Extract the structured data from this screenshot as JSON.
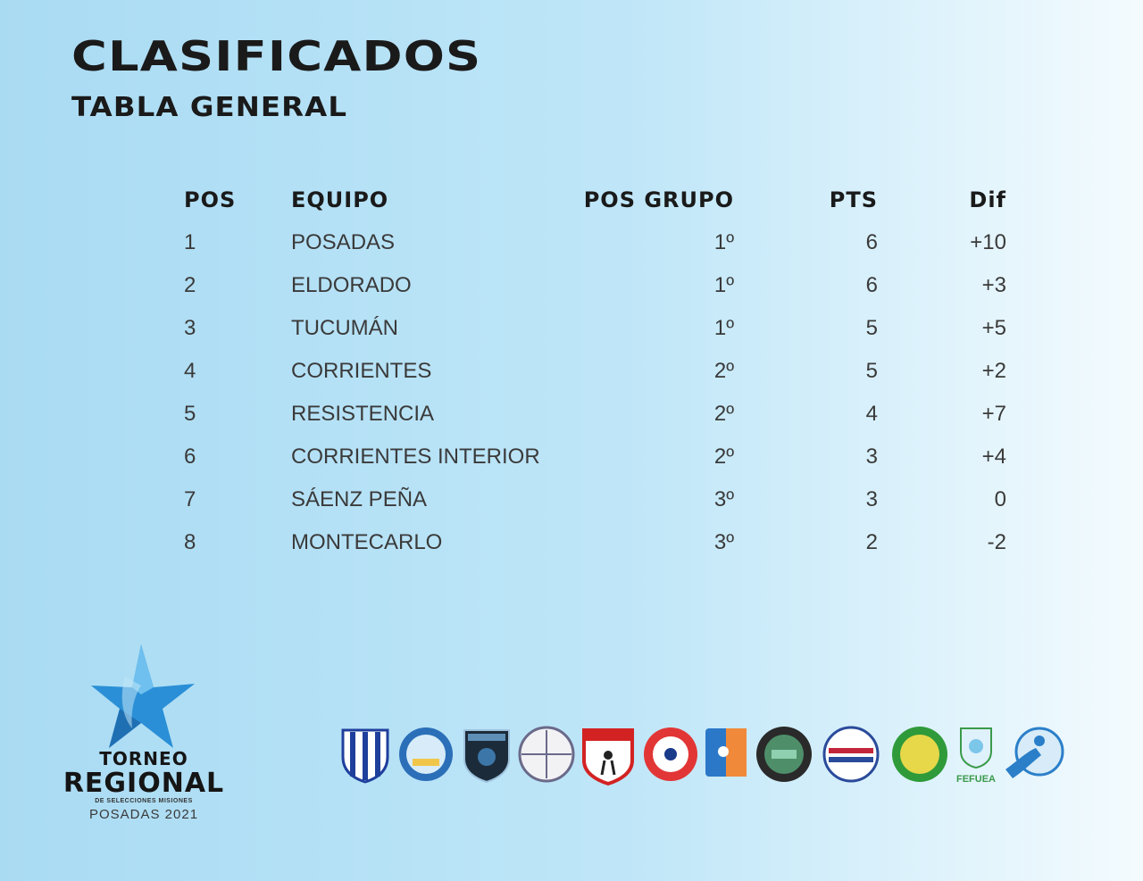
{
  "header": {
    "title": "CLASIFICADOS",
    "subtitle": "TABLA GENERAL"
  },
  "table": {
    "columns": [
      "POS",
      "EQUIPO",
      "POS GRUPO",
      "PTS",
      "Dif"
    ],
    "rows": [
      {
        "pos": "1",
        "team": "POSADAS",
        "group_pos": "1º",
        "pts": "6",
        "dif": "+10"
      },
      {
        "pos": "2",
        "team": "ELDORADO",
        "group_pos": "1º",
        "pts": "6",
        "dif": "+3"
      },
      {
        "pos": "3",
        "team": "TUCUMÁN",
        "group_pos": "1º",
        "pts": "5",
        "dif": "+5"
      },
      {
        "pos": "4",
        "team": "CORRIENTES",
        "group_pos": "2º",
        "pts": "5",
        "dif": "+2"
      },
      {
        "pos": "5",
        "team": "RESISTENCIA",
        "group_pos": "2º",
        "pts": "4",
        "dif": "+7"
      },
      {
        "pos": "6",
        "team": "CORRIENTES INTERIOR",
        "group_pos": "2º",
        "pts": "3",
        "dif": "+4"
      },
      {
        "pos": "7",
        "team": "SÁENZ PEÑA",
        "group_pos": "3º",
        "pts": "3",
        "dif": "0"
      },
      {
        "pos": "8",
        "team": "MONTECARLO",
        "group_pos": "3º",
        "pts": "2",
        "dif": "-2"
      }
    ]
  },
  "logo": {
    "line1": "TORNEO",
    "line2": "REGIONAL",
    "line3": "DE SELECCIONES MISIONES",
    "line4": "POSADAS 2021",
    "icon": "star-icon",
    "star_color": "#2a8fd6"
  },
  "badges": [
    {
      "icon": "striped-shield-badge-icon",
      "color": "#1f3f9c"
    },
    {
      "icon": "round-crest-badge-icon",
      "color": "#2b6fb8"
    },
    {
      "icon": "dark-shield-badge-icon",
      "color": "#1c2b3a"
    },
    {
      "icon": "round-monogram-badge-icon",
      "color": "#6a6a8a"
    },
    {
      "icon": "red-shield-badge-icon",
      "color": "#d32222"
    },
    {
      "icon": "ball-badge-icon",
      "color": "#e23636"
    },
    {
      "icon": "blue-orange-badge-icon",
      "color": "#2b78c9"
    },
    {
      "icon": "dark-round-badge-icon",
      "color": "#2a2a2a"
    },
    {
      "icon": "red-blue-round-badge-icon",
      "color": "#c3263a"
    },
    {
      "icon": "green-yellow-badge-icon",
      "color": "#2f9a3a"
    },
    {
      "icon": "small-crest-badge-icon",
      "color": "#3a9a4a"
    },
    {
      "icon": "player-badge-icon",
      "color": "#2b7fc9"
    }
  ],
  "badge_texts": {
    "fefuea": "FEFUEA"
  }
}
